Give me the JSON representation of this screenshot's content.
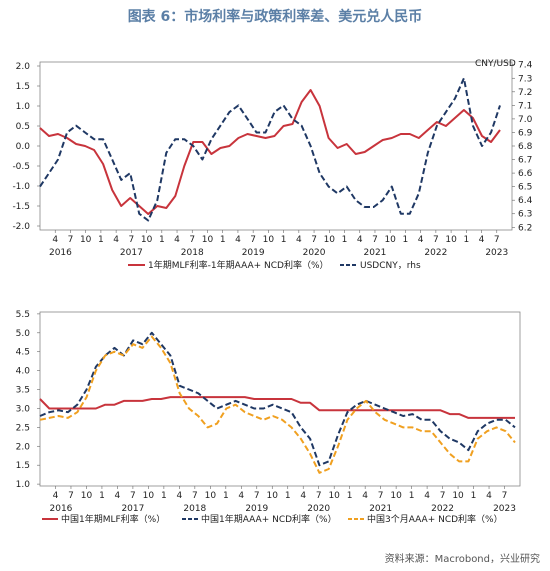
{
  "title": "图表 6：市场利率与政策利率差、美元兑人民币",
  "source": "资料来源：Macrobond，兴业研究",
  "colors": {
    "red": "#c8343c",
    "navy": "#1f3864",
    "gold": "#f0a020"
  },
  "chart_data": [
    {
      "type": "line",
      "x_months_ticks": [
        "4",
        "7",
        "10",
        "1",
        "4",
        "7",
        "10",
        "1",
        "4",
        "7",
        "10",
        "1",
        "4",
        "7",
        "10",
        "1",
        "4",
        "7",
        "10",
        "1",
        "4",
        "7",
        "10",
        "1",
        "4",
        "7",
        "10",
        "1",
        "4",
        "7"
      ],
      "year_labels": [
        "2016",
        "2017",
        "2018",
        "2019",
        "2020",
        "2021",
        "2022",
        "2023"
      ],
      "left_axis": {
        "ticks": [
          "2.0",
          "1.5",
          "1.0",
          "0.5",
          "0.0",
          "-0.5",
          "-1.0",
          "-1.5",
          "-2.0"
        ],
        "ylim": [
          -2.1,
          2.1
        ]
      },
      "right_axis": {
        "label": "CNY/USD",
        "ticks": [
          "7.4",
          "7.3",
          "7.2",
          "7.1",
          "7.0",
          "6.9",
          "6.8",
          "6.7",
          "6.6",
          "6.5",
          "6.4",
          "6.3",
          "6.2"
        ],
        "ylim": [
          6.18,
          7.42
        ]
      },
      "legend": [
        "1年期MLF利率-1年期AAA+ NCD利率（%）",
        "USDCNY，rhs"
      ],
      "series": [
        {
          "name": "1年期MLF利率-1年期AAA+ NCD利率（%）",
          "axis": "left",
          "style": "solid",
          "values": [
            0.45,
            0.25,
            0.3,
            0.2,
            0.05,
            0.0,
            -0.1,
            -0.45,
            -1.1,
            -1.5,
            -1.3,
            -1.5,
            -1.7,
            -1.5,
            -1.55,
            -1.25,
            -0.5,
            0.1,
            0.1,
            -0.2,
            -0.05,
            0.0,
            0.2,
            0.3,
            0.25,
            0.2,
            0.25,
            0.5,
            0.55,
            1.1,
            1.4,
            1.0,
            0.2,
            -0.05,
            0.05,
            -0.2,
            -0.15,
            0.0,
            0.15,
            0.2,
            0.3,
            0.3,
            0.2,
            0.4,
            0.6,
            0.5,
            0.7,
            0.9,
            0.7,
            0.25,
            0.1,
            0.4
          ]
        },
        {
          "name": "USDCNY，rhs",
          "axis": "right",
          "style": "dash",
          "values": [
            6.5,
            6.6,
            6.7,
            6.9,
            6.95,
            6.9,
            6.85,
            6.85,
            6.7,
            6.55,
            6.6,
            6.3,
            6.25,
            6.4,
            6.75,
            6.85,
            6.85,
            6.8,
            6.7,
            6.85,
            6.95,
            7.05,
            7.1,
            7.0,
            6.9,
            6.9,
            7.05,
            7.1,
            7.0,
            6.95,
            6.8,
            6.6,
            6.5,
            6.45,
            6.5,
            6.4,
            6.35,
            6.35,
            6.4,
            6.5,
            6.3,
            6.3,
            6.45,
            6.75,
            6.95,
            7.05,
            7.15,
            7.3,
            6.95,
            6.8,
            6.9,
            7.1
          ]
        }
      ]
    },
    {
      "type": "line",
      "x_months_ticks": [
        "4",
        "7",
        "10",
        "1",
        "4",
        "7",
        "10",
        "1",
        "4",
        "7",
        "10",
        "1",
        "4",
        "7",
        "10",
        "1",
        "4",
        "7",
        "10",
        "1",
        "4",
        "7",
        "10",
        "1",
        "4",
        "7",
        "10",
        "1",
        "4",
        "7"
      ],
      "year_labels": [
        "2016",
        "2017",
        "2018",
        "2019",
        "2020",
        "2021",
        "2022",
        "2023"
      ],
      "y_axis": {
        "ticks": [
          "5.5",
          "5.0",
          "4.5",
          "4.0",
          "3.5",
          "3.0",
          "2.5",
          "2.0",
          "1.5",
          "1.0"
        ],
        "ylim": [
          0.95,
          5.55
        ]
      },
      "legend": [
        "中国1年期MLF利率（%）",
        "中国1年期AAA+ NCD利率（%）",
        "中国3个月AAA+ NCD利率（%）"
      ],
      "series": [
        {
          "name": "中国1年期MLF利率（%）",
          "style": "solid",
          "values": [
            3.25,
            3.0,
            3.0,
            3.0,
            3.0,
            3.0,
            3.0,
            3.1,
            3.1,
            3.2,
            3.2,
            3.2,
            3.25,
            3.25,
            3.3,
            3.3,
            3.3,
            3.3,
            3.3,
            3.3,
            3.3,
            3.3,
            3.3,
            3.25,
            3.25,
            3.25,
            3.25,
            3.25,
            3.15,
            3.15,
            2.95,
            2.95,
            2.95,
            2.95,
            2.95,
            2.95,
            2.95,
            2.95,
            2.95,
            2.95,
            2.95,
            2.95,
            2.95,
            2.95,
            2.85,
            2.85,
            2.75,
            2.75,
            2.75,
            2.75,
            2.75,
            2.75
          ]
        },
        {
          "name": "中国1年期AAA+ NCD利率（%）",
          "style": "dash",
          "values": [
            2.8,
            2.9,
            2.95,
            2.9,
            3.1,
            3.5,
            4.1,
            4.4,
            4.6,
            4.4,
            4.8,
            4.7,
            5.0,
            4.7,
            4.4,
            3.6,
            3.5,
            3.4,
            3.2,
            3.0,
            3.1,
            3.2,
            3.1,
            3.0,
            3.0,
            3.1,
            3.0,
            2.9,
            2.5,
            2.2,
            1.5,
            1.6,
            2.3,
            2.9,
            3.1,
            3.2,
            3.1,
            3.0,
            2.9,
            2.8,
            2.85,
            2.7,
            2.7,
            2.4,
            2.2,
            2.1,
            1.9,
            2.4,
            2.6,
            2.7,
            2.7,
            2.5
          ]
        },
        {
          "name": "中国3个月AAA+ NCD利率（%）",
          "style": "dash",
          "values": [
            2.7,
            2.75,
            2.8,
            2.75,
            2.9,
            3.3,
            4.0,
            4.4,
            4.5,
            4.4,
            4.7,
            4.6,
            4.9,
            4.6,
            4.2,
            3.4,
            3.0,
            2.8,
            2.5,
            2.6,
            3.0,
            3.1,
            2.9,
            2.8,
            2.7,
            2.8,
            2.7,
            2.5,
            2.2,
            1.8,
            1.3,
            1.4,
            2.0,
            2.7,
            3.0,
            3.2,
            2.9,
            2.7,
            2.6,
            2.5,
            2.5,
            2.4,
            2.4,
            2.1,
            1.8,
            1.6,
            1.6,
            2.2,
            2.4,
            2.5,
            2.4,
            2.1
          ]
        }
      ]
    }
  ]
}
